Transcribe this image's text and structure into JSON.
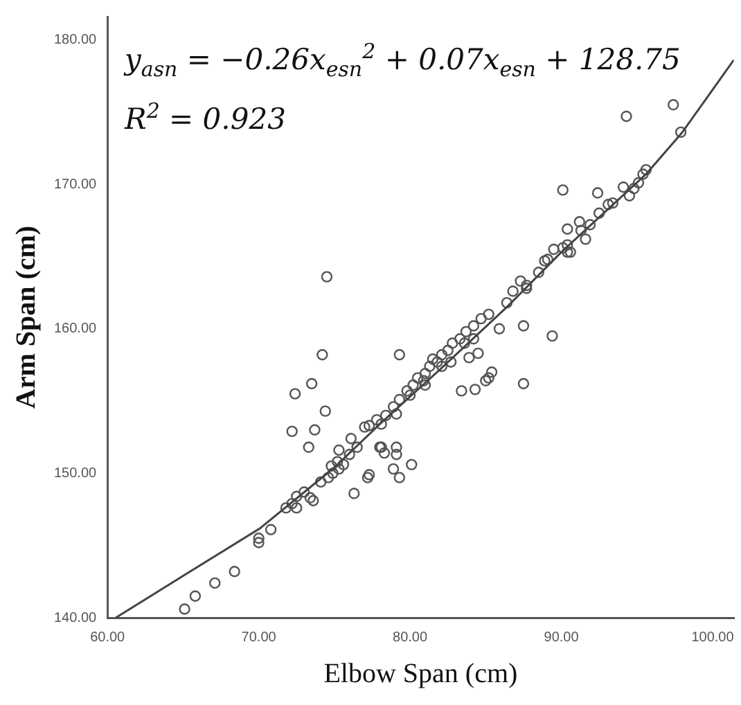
{
  "chart_data": {
    "type": "scatter",
    "xlabel": "Elbow Span (cm)",
    "ylabel": "Arm Span (cm)",
    "annotations": [
      "y$_{asn}$ = −0.26x$_{esn}$$^{2}$ + 0.07x$_{esn}$ + 128.75",
      "R$^{2}$ = 0.923"
    ],
    "xlim": [
      60,
      101.4
    ],
    "ylim": [
      140,
      181.6
    ],
    "xticks": [
      {
        "value": 60,
        "label": "60.00"
      },
      {
        "value": 70,
        "label": "70.00"
      },
      {
        "value": 80,
        "label": "80.00"
      },
      {
        "value": 90,
        "label": "90.00"
      },
      {
        "value": 100,
        "label": "100.00"
      }
    ],
    "yticks": [
      {
        "value": 140,
        "label": "140.00"
      },
      {
        "value": 150,
        "label": "150.00"
      },
      {
        "value": 160,
        "label": "160.00"
      },
      {
        "value": 170,
        "label": "170.00"
      },
      {
        "value": 180,
        "label": "180.00"
      }
    ],
    "grid": false,
    "legend": false,
    "marker": "circle",
    "series": [
      {
        "color": "#555555",
        "x": [
          65.1,
          65.8,
          67.1,
          68.4,
          70.0,
          70.0,
          70.8,
          71.8,
          72.2,
          72.5,
          72.5,
          73.0,
          73.4,
          73.6,
          72.2,
          72.4,
          73.5,
          74.2,
          74.4,
          73.7,
          73.3,
          74.5,
          74.1,
          74.6,
          74.9,
          75.3,
          75.6,
          74.8,
          75.2,
          76.0,
          76.5,
          75.3,
          76.1,
          77.0,
          77.3,
          76.3,
          77.2,
          78.0,
          77.3,
          78.1,
          78.3,
          79.1,
          79.1,
          78.9,
          80.1,
          79.3,
          79.3,
          77.8,
          78.4,
          78.9,
          79.3,
          79.8,
          80.2,
          80.5,
          81.0,
          81.3,
          81.8,
          82.1,
          82.5,
          82.8,
          83.3,
          83.7,
          84.2,
          84.7,
          85.2,
          86.4,
          86.8,
          87.3,
          87.7,
          88.5,
          88.9,
          89.5,
          90.1,
          90.4,
          90.4,
          80.9,
          81.5,
          82.1,
          82.7,
          80.0,
          79.1,
          78.1,
          81.0,
          83.6,
          84.2,
          84.5,
          83.9,
          83.4,
          84.3,
          85.0,
          85.4,
          85.2,
          87.5,
          87.5,
          85.9,
          89.4,
          97.4,
          94.3,
          97.9,
          90.1,
          92.4,
          95.6,
          95.4,
          95.1,
          94.5,
          94.1,
          93.4,
          93.1,
          92.5,
          91.9,
          91.2,
          90.4,
          91.3,
          91.6,
          90.6,
          89.1,
          87.7,
          94.8
        ],
        "values": [
          140.6,
          141.5,
          142.4,
          143.2,
          145.2,
          145.5,
          146.1,
          147.6,
          147.9,
          147.6,
          148.4,
          148.7,
          148.3,
          148.1,
          152.9,
          155.5,
          156.2,
          158.2,
          154.3,
          153.0,
          151.8,
          163.6,
          149.4,
          149.7,
          150.0,
          150.3,
          150.6,
          150.5,
          150.8,
          151.3,
          151.8,
          151.6,
          152.4,
          153.2,
          153.3,
          148.6,
          149.7,
          151.8,
          149.9,
          151.8,
          151.4,
          151.8,
          151.3,
          150.3,
          150.6,
          149.7,
          158.2,
          153.7,
          154.0,
          154.6,
          155.1,
          155.7,
          156.1,
          156.6,
          156.9,
          157.4,
          157.7,
          158.2,
          158.5,
          159.0,
          159.3,
          159.8,
          160.2,
          160.7,
          161.0,
          161.8,
          162.6,
          163.3,
          163.0,
          163.9,
          164.7,
          165.5,
          165.6,
          165.3,
          166.9,
          156.4,
          157.9,
          157.4,
          157.7,
          155.4,
          154.1,
          153.4,
          156.1,
          159.0,
          159.3,
          158.3,
          158.0,
          155.7,
          155.8,
          156.4,
          157.0,
          156.6,
          156.2,
          160.2,
          160.0,
          159.5,
          175.5,
          174.7,
          173.6,
          169.6,
          169.4,
          171.0,
          170.7,
          170.1,
          169.2,
          169.8,
          168.7,
          168.6,
          168.0,
          167.2,
          167.4,
          165.8,
          166.8,
          166.2,
          165.3,
          164.8,
          162.8,
          169.7
        ]
      },
      {
        "type": "line",
        "color": "#444444",
        "marker": "none",
        "x": [
          60.55,
          65,
          70.1,
          75,
          78.1,
          82,
          86.4,
          90,
          95.6,
          98,
          101.4
        ],
        "values": [
          140,
          142.9,
          146.2,
          150.4,
          153.5,
          157.2,
          161.5,
          165.3,
          170.7,
          173.6,
          178.6
        ]
      }
    ]
  }
}
